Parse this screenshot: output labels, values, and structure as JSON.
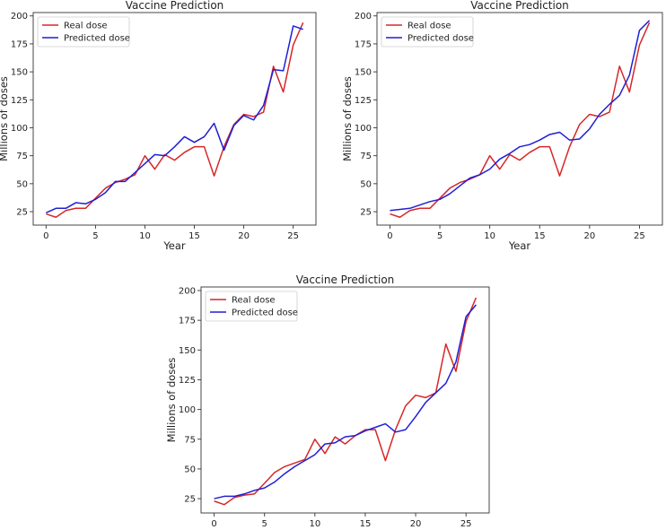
{
  "chart_data": [
    {
      "type": "line",
      "title": "Vaccine Prediction",
      "xlabel": "Year",
      "ylabel": "Millions of doses",
      "xlim": [
        -1.3,
        27.3
      ],
      "ylim": [
        13,
        203
      ],
      "xticks": [
        0,
        5,
        10,
        15,
        20,
        25
      ],
      "yticks": [
        25,
        50,
        75,
        100,
        125,
        150,
        175,
        200
      ],
      "legend_position": "upper-left",
      "x": [
        0,
        1,
        2,
        3,
        4,
        5,
        6,
        7,
        8,
        9,
        10,
        11,
        12,
        13,
        14,
        15,
        16,
        17,
        18,
        19,
        20,
        21,
        22,
        23,
        24,
        25,
        26
      ],
      "series": [
        {
          "name": "Real dose",
          "color": "#d62728",
          "values": [
            23,
            20,
            26,
            28,
            28,
            37,
            46,
            51,
            54,
            58,
            75,
            63,
            76,
            71,
            78,
            83,
            83,
            57,
            83,
            103,
            112,
            110,
            114,
            155,
            132,
            174,
            194
          ]
        },
        {
          "name": "Predicted dose",
          "color": "#1f1fd6",
          "values": [
            24,
            28,
            28,
            33,
            32,
            36,
            42,
            52,
            52,
            60,
            68,
            76,
            75,
            83,
            92,
            87,
            92,
            104,
            80,
            102,
            111,
            107,
            120,
            152,
            151,
            191,
            188
          ]
        }
      ]
    },
    {
      "type": "line",
      "title": "Vaccine Prediction",
      "xlabel": "Year",
      "ylabel": "Millions of doses",
      "xlim": [
        -1.3,
        27.3
      ],
      "ylim": [
        13,
        203
      ],
      "xticks": [
        0,
        5,
        10,
        15,
        20,
        25
      ],
      "yticks": [
        25,
        50,
        75,
        100,
        125,
        150,
        175,
        200
      ],
      "legend_position": "upper-left",
      "x": [
        0,
        1,
        2,
        3,
        4,
        5,
        6,
        7,
        8,
        9,
        10,
        11,
        12,
        13,
        14,
        15,
        16,
        17,
        18,
        19,
        20,
        21,
        22,
        23,
        24,
        25,
        26
      ],
      "series": [
        {
          "name": "Real dose",
          "color": "#d62728",
          "values": [
            23,
            20,
            26,
            28,
            28,
            37,
            46,
            51,
            54,
            58,
            75,
            63,
            76,
            71,
            78,
            83,
            83,
            57,
            83,
            103,
            112,
            110,
            114,
            155,
            132,
            174,
            194
          ]
        },
        {
          "name": "Predicted dose",
          "color": "#1f1fd6",
          "values": [
            26,
            27,
            28,
            31,
            34,
            36,
            41,
            48,
            55,
            58,
            63,
            72,
            77,
            83,
            85,
            89,
            94,
            96,
            89,
            90,
            99,
            112,
            121,
            129,
            147,
            187,
            196
          ]
        }
      ]
    },
    {
      "type": "line",
      "title": "Vaccine Prediction",
      "xlabel": "Year",
      "ylabel": "Millions of doses",
      "xlim": [
        -1.3,
        27.3
      ],
      "ylim": [
        13,
        203
      ],
      "xticks": [
        0,
        5,
        10,
        15,
        20,
        25
      ],
      "yticks": [
        25,
        50,
        75,
        100,
        125,
        150,
        175,
        200
      ],
      "legend_position": "upper-left",
      "x": [
        0,
        1,
        2,
        3,
        4,
        5,
        6,
        7,
        8,
        9,
        10,
        11,
        12,
        13,
        14,
        15,
        16,
        17,
        18,
        19,
        20,
        21,
        22,
        23,
        24,
        25,
        26
      ],
      "series": [
        {
          "name": "Real dose",
          "color": "#d62728",
          "values": [
            23,
            20,
            26,
            28,
            29,
            38,
            47,
            52,
            55,
            58,
            75,
            63,
            77,
            71,
            78,
            83,
            83,
            57,
            83,
            103,
            112,
            110,
            114,
            155,
            132,
            174,
            194
          ]
        },
        {
          "name": "Predicted dose",
          "color": "#1f1fd6",
          "values": [
            25,
            27,
            27,
            29,
            32,
            34,
            39,
            46,
            52,
            57,
            62,
            71,
            72,
            77,
            78,
            82,
            85,
            88,
            81,
            83,
            94,
            106,
            114,
            122,
            140,
            178,
            188
          ]
        }
      ]
    }
  ]
}
